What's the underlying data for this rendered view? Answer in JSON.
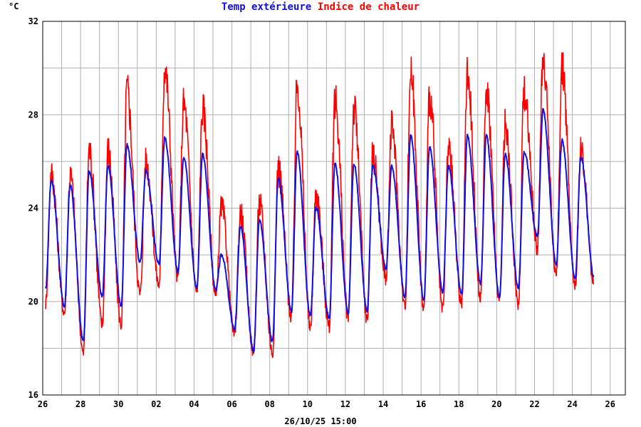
{
  "chart_data": {
    "type": "line",
    "y_unit": "°C",
    "ylim": [
      16,
      32
    ],
    "y_ticks": [
      "16",
      "20",
      "24",
      "28",
      "32"
    ],
    "x_tick_labels": [
      "26",
      "28",
      "30",
      "02",
      "04",
      "06",
      "08",
      "10",
      "12",
      "14",
      "16",
      "18",
      "20",
      "22",
      "24",
      "26"
    ],
    "timestamp": "26/10/25 15:00",
    "grid": true,
    "legend": "top-center",
    "series": [
      {
        "name": "Temp extérieure",
        "color": "#1010e0",
        "daily_min_max": [
          [
            20.5,
            25.2
          ],
          [
            19.8,
            25.0
          ],
          [
            18.3,
            25.6
          ],
          [
            20.2,
            25.8
          ],
          [
            19.8,
            26.7
          ],
          [
            21.7,
            25.6
          ],
          [
            21.6,
            27.0
          ],
          [
            21.3,
            26.2
          ],
          [
            20.6,
            26.3
          ],
          [
            20.5,
            22.0
          ],
          [
            18.8,
            23.2
          ],
          [
            17.9,
            23.5
          ],
          [
            18.3,
            25.3
          ],
          [
            19.6,
            26.4
          ],
          [
            19.4,
            24.0
          ],
          [
            19.3,
            25.9
          ],
          [
            19.5,
            25.9
          ],
          [
            19.6,
            25.8
          ],
          [
            21.4,
            25.8
          ],
          [
            20.2,
            27.1
          ],
          [
            20.1,
            26.6
          ],
          [
            20.4,
            25.8
          ],
          [
            20.3,
            27.1
          ],
          [
            20.8,
            27.1
          ],
          [
            20.2,
            26.3
          ],
          [
            20.6,
            26.4
          ],
          [
            22.8,
            28.2
          ],
          [
            21.6,
            26.9
          ],
          [
            21.0,
            26.2
          ]
        ]
      },
      {
        "name": "Indice de chaleur",
        "color": "#ff0000",
        "daily_min_max": [
          [
            19.9,
            25.5
          ],
          [
            19.5,
            25.4
          ],
          [
            17.8,
            26.5
          ],
          [
            19.0,
            26.5
          ],
          [
            19.0,
            29.1
          ],
          [
            20.3,
            26.0
          ],
          [
            20.7,
            30.0
          ],
          [
            21.0,
            28.5
          ],
          [
            20.4,
            28.3
          ],
          [
            20.2,
            24.1
          ],
          [
            18.6,
            23.8
          ],
          [
            17.8,
            24.2
          ],
          [
            17.8,
            25.7
          ],
          [
            19.4,
            29.3
          ],
          [
            18.8,
            24.6
          ],
          [
            18.9,
            28.7
          ],
          [
            19.3,
            28.3
          ],
          [
            19.2,
            26.3
          ],
          [
            21.0,
            27.5
          ],
          [
            19.8,
            29.8
          ],
          [
            19.7,
            28.8
          ],
          [
            19.6,
            26.5
          ],
          [
            19.9,
            29.8
          ],
          [
            20.1,
            29.2
          ],
          [
            20.0,
            27.6
          ],
          [
            19.9,
            29.0
          ],
          [
            22.3,
            30.4
          ],
          [
            21.1,
            30.0
          ],
          [
            20.7,
            26.5
          ]
        ]
      }
    ]
  }
}
